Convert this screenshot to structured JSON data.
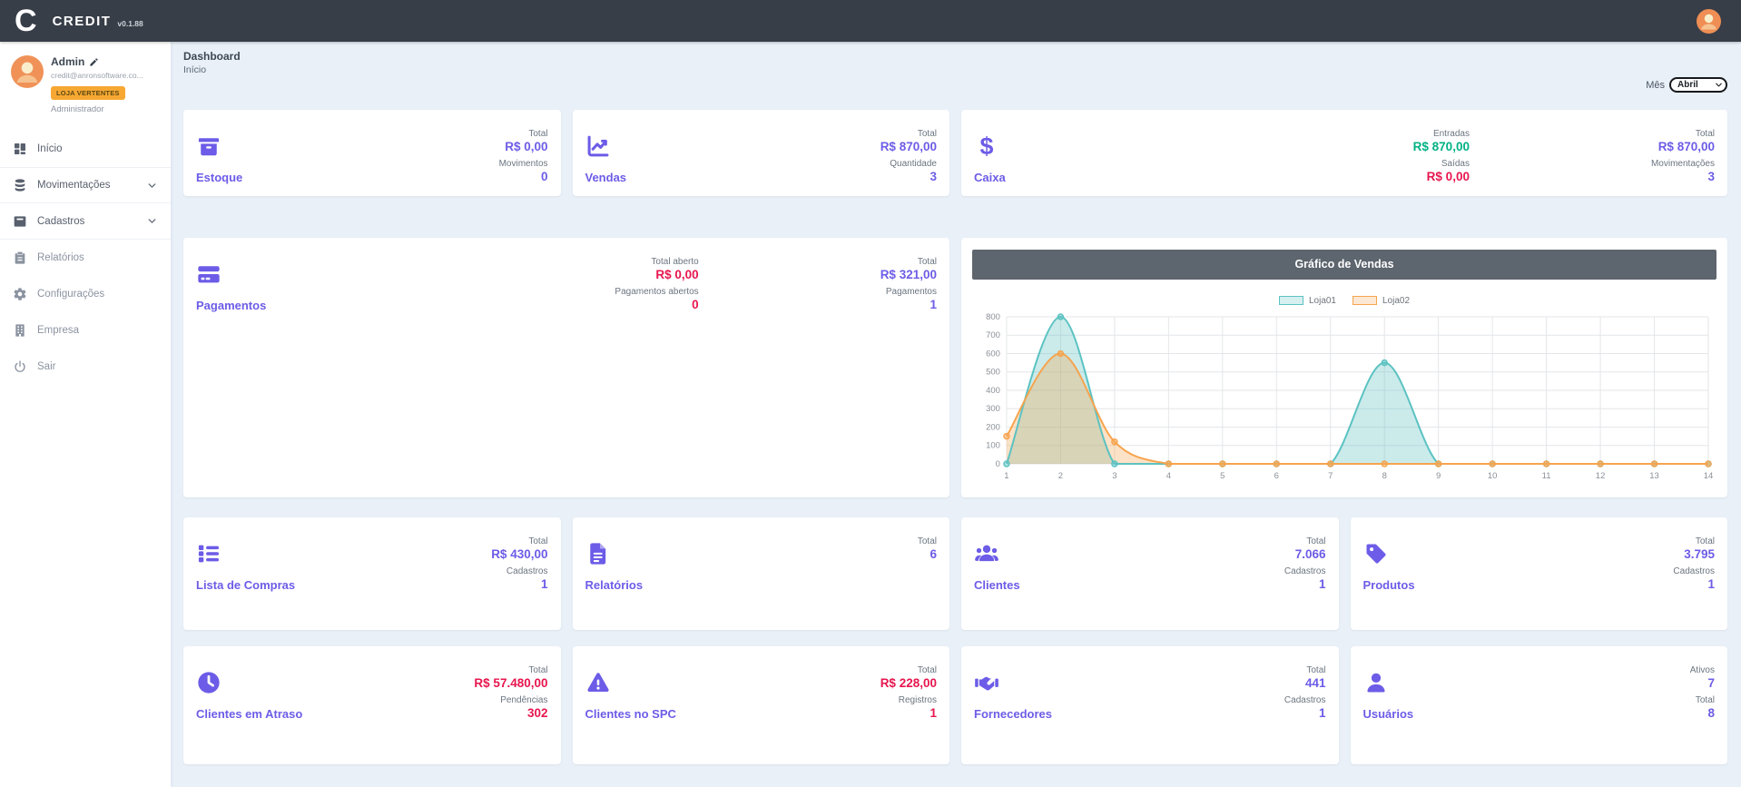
{
  "topbar": {
    "logo_letter": "C",
    "brand": "CREDIT",
    "version": "v0.1.88"
  },
  "sidebar": {
    "user": {
      "name": "Admin",
      "email": "credit@anronsoftware.co...",
      "store_badge": "LOJA VERTENTES",
      "role": "Administrador"
    },
    "items": [
      {
        "id": "inicio",
        "label": "Início",
        "icon": "grid-icon",
        "expandable": false
      },
      {
        "id": "movimentacoes",
        "label": "Movimentações",
        "icon": "database-icon",
        "expandable": true
      },
      {
        "id": "cadastros",
        "label": "Cadastros",
        "icon": "archive-icon",
        "expandable": true
      },
      {
        "id": "relatorios",
        "label": "Relatórios",
        "icon": "clipboard-icon",
        "expandable": false
      },
      {
        "id": "configuracoes",
        "label": "Configurações",
        "icon": "gear-icon",
        "expandable": false
      },
      {
        "id": "empresa",
        "label": "Empresa",
        "icon": "building-icon",
        "expandable": false
      },
      {
        "id": "sair",
        "label": "Sair",
        "icon": "power-icon",
        "expandable": false
      }
    ]
  },
  "header": {
    "title": "Dashboard",
    "subtitle": "Início",
    "month_label": "Mês",
    "month_value": "Abril"
  },
  "cards": {
    "estoque": {
      "title": "Estoque",
      "icon": "box-icon",
      "columns": [
        [
          {
            "label": "Total",
            "value": "R$ 0,00",
            "tone": "accent"
          },
          {
            "label": "Movimentos",
            "value": "0",
            "tone": "accent"
          }
        ]
      ]
    },
    "vendas": {
      "title": "Vendas",
      "icon": "chart-up-icon",
      "columns": [
        [
          {
            "label": "Total",
            "value": "R$ 870,00",
            "tone": "accent"
          },
          {
            "label": "Quantidade",
            "value": "3",
            "tone": "accent"
          }
        ]
      ]
    },
    "caixa": {
      "title": "Caixa",
      "icon": "dollar-icon",
      "columns": [
        [
          {
            "label": "Entradas",
            "value": "R$ 870,00",
            "tone": "success"
          },
          {
            "label": "Saídas",
            "value": "R$ 0,00",
            "tone": "danger"
          }
        ],
        [
          {
            "label": "Total",
            "value": "R$ 870,00",
            "tone": "accent"
          },
          {
            "label": "Movimentações",
            "value": "3",
            "tone": "accent"
          }
        ]
      ]
    },
    "pagamentos": {
      "title": "Pagamentos",
      "icon": "credit-card-icon",
      "columns": [
        [
          {
            "label": "Total aberto",
            "value": "R$ 0,00",
            "tone": "danger"
          },
          {
            "label": "Pagamentos abertos",
            "value": "0",
            "tone": "danger"
          }
        ],
        [
          {
            "label": "Total",
            "value": "R$ 321,00",
            "tone": "accent"
          },
          {
            "label": "Pagamentos",
            "value": "1",
            "tone": "accent"
          }
        ]
      ]
    },
    "lista_compras": {
      "title": "Lista de Compras",
      "icon": "list-icon",
      "columns": [
        [
          {
            "label": "Total",
            "value": "R$ 430,00",
            "tone": "accent"
          },
          {
            "label": "Cadastros",
            "value": "1",
            "tone": "accent"
          }
        ]
      ]
    },
    "relatorios": {
      "title": "Relatórios",
      "icon": "file-icon",
      "columns": [
        [
          {
            "label": "Total",
            "value": "6",
            "tone": "accent"
          }
        ]
      ]
    },
    "clientes": {
      "title": "Clientes",
      "icon": "users-icon",
      "columns": [
        [
          {
            "label": "Total",
            "value": "7.066",
            "tone": "accent"
          },
          {
            "label": "Cadastros",
            "value": "1",
            "tone": "accent"
          }
        ]
      ]
    },
    "produtos": {
      "title": "Produtos",
      "icon": "tag-icon",
      "columns": [
        [
          {
            "label": "Total",
            "value": "3.795",
            "tone": "accent"
          },
          {
            "label": "Cadastros",
            "value": "1",
            "tone": "accent"
          }
        ]
      ]
    },
    "clientes_atraso": {
      "title": "Clientes em Atraso",
      "icon": "clock-icon",
      "columns": [
        [
          {
            "label": "Total",
            "value": "R$ 57.480,00",
            "tone": "danger"
          },
          {
            "label": "Pendências",
            "value": "302",
            "tone": "danger"
          }
        ]
      ]
    },
    "clientes_spc": {
      "title": "Clientes no SPC",
      "icon": "warning-icon",
      "columns": [
        [
          {
            "label": "Total",
            "value": "R$ 228,00",
            "tone": "danger"
          },
          {
            "label": "Registros",
            "value": "1",
            "tone": "danger"
          }
        ]
      ]
    },
    "fornecedores": {
      "title": "Fornecedores",
      "icon": "handshake-icon",
      "columns": [
        [
          {
            "label": "Total",
            "value": "441",
            "tone": "accent"
          },
          {
            "label": "Cadastros",
            "value": "1",
            "tone": "accent"
          }
        ]
      ]
    },
    "usuarios": {
      "title": "Usuários",
      "icon": "user-icon",
      "columns": [
        [
          {
            "label": "Ativos",
            "value": "7",
            "tone": "accent"
          },
          {
            "label": "Total",
            "value": "8",
            "tone": "accent"
          }
        ]
      ]
    }
  },
  "chart_data": {
    "type": "area",
    "title": "Gráfico de Vendas",
    "x": [
      1,
      2,
      3,
      4,
      5,
      6,
      7,
      8,
      9,
      10,
      11,
      12,
      13,
      14
    ],
    "series": [
      {
        "name": "Loja01",
        "color": "#5cc2c2",
        "values": [
          0,
          800,
          0,
          0,
          0,
          0,
          0,
          550,
          0,
          0,
          0,
          0,
          0,
          0
        ]
      },
      {
        "name": "Loja02",
        "color": "#f6a44e",
        "values": [
          150,
          600,
          120,
          0,
          0,
          0,
          0,
          0,
          0,
          0,
          0,
          0,
          0,
          0
        ]
      }
    ],
    "xlabel": "",
    "ylabel": "",
    "ylim": [
      0,
      800
    ],
    "ytick_step": 100,
    "grid": true,
    "smooth": true,
    "legend_position": "top-center"
  },
  "colors": {
    "accent": "#6c5ce7",
    "danger": "#e7164e",
    "success": "#00b184",
    "topbar_bg": "#383e48",
    "chart_header_bg": "#5d656e",
    "badge_bg": "#f7a832",
    "main_bg": "#e9f0f8",
    "series_teal": "#5cc2c2",
    "series_orange": "#f6a44e"
  }
}
